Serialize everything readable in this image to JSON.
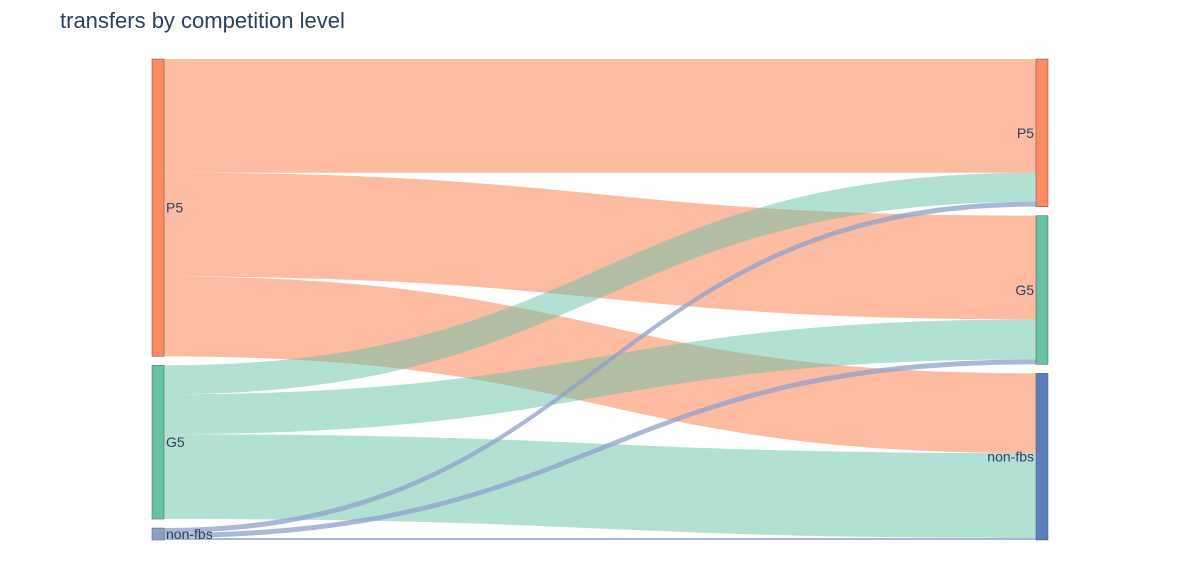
{
  "title": "transfers by competition level",
  "chart_data": {
    "type": "sankey",
    "title": "transfers by competition level",
    "source_nodes": [
      {
        "id": "src-P5",
        "label": "P5",
        "color": "#fc8d62"
      },
      {
        "id": "src-G5",
        "label": "G5",
        "color": "#66c2a5"
      },
      {
        "id": "src-nonfbs",
        "label": "non-fbs",
        "color": "#8da0cb"
      }
    ],
    "target_nodes": [
      {
        "id": "tgt-P5",
        "label": "P5",
        "color": "#fc8d62"
      },
      {
        "id": "tgt-G5",
        "label": "G5",
        "color": "#66c2a5"
      },
      {
        "id": "tgt-nonfbs",
        "label": "non-fbs",
        "color": "#5b7fbf"
      }
    ],
    "links": [
      {
        "source": 0,
        "target": 0,
        "value": 114
      },
      {
        "source": 0,
        "target": 1,
        "value": 104
      },
      {
        "source": 0,
        "target": 2,
        "value": 80
      },
      {
        "source": 1,
        "target": 0,
        "value": 29
      },
      {
        "source": 1,
        "target": 1,
        "value": 40
      },
      {
        "source": 1,
        "target": 2,
        "value": 85
      },
      {
        "source": 2,
        "target": 0,
        "value": 5
      },
      {
        "source": 2,
        "target": 1,
        "value": 5
      },
      {
        "source": 2,
        "target": 2,
        "value": 2
      }
    ],
    "colors": {
      "P5_link": "rgba(252,141,98,0.6)",
      "G5_link": "rgba(102,194,165,0.5)",
      "nonfbs_link": "rgba(141,160,203,0.75)"
    }
  }
}
